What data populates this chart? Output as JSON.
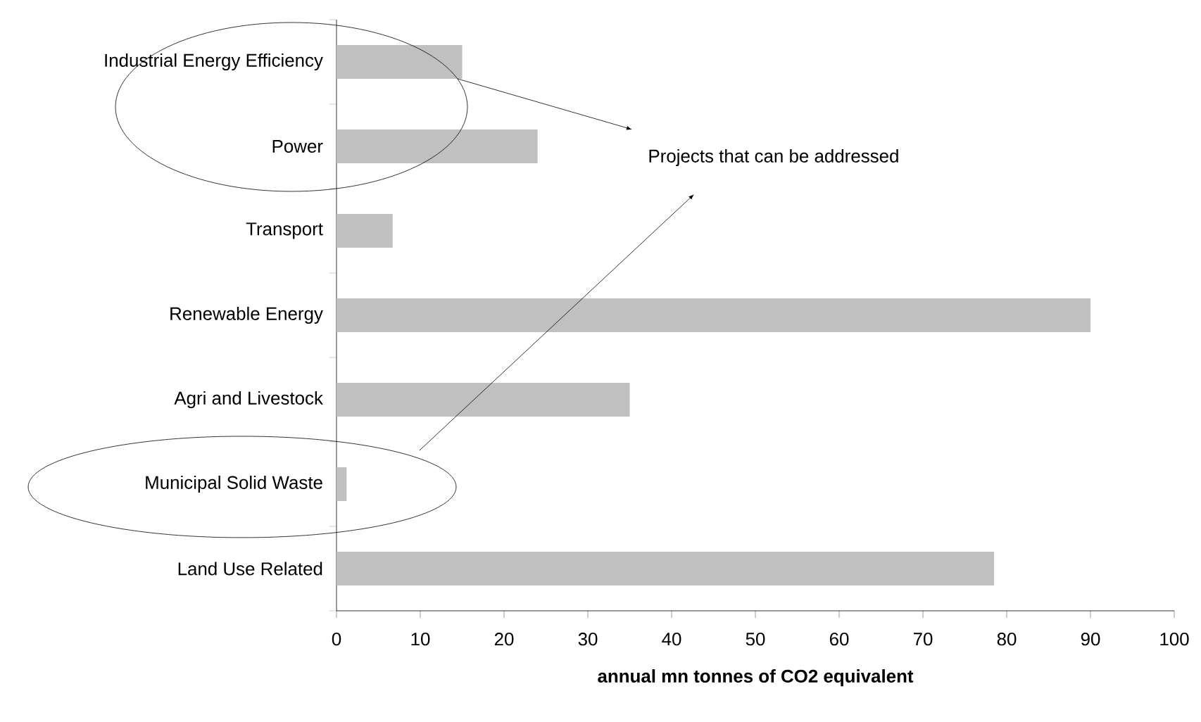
{
  "chart_data": {
    "type": "bar",
    "orientation": "horizontal",
    "categories": [
      "Industrial Energy Efficiency",
      "Power",
      "Transport",
      "Renewable Energy",
      "Agri and Livestock",
      "Municipal Solid Waste",
      "Land Use Related"
    ],
    "values": [
      15,
      24,
      6.7,
      90,
      35,
      1.2,
      78.5
    ],
    "color": "#c0c0c0",
    "xlim": [
      0,
      100
    ],
    "xticks": [
      0,
      10,
      20,
      30,
      40,
      50,
      60,
      70,
      80,
      90,
      100
    ],
    "xlabel": "annual mn tonnes of CO2 equivalent",
    "annotations": [
      "Projects that can be addressed"
    ]
  }
}
